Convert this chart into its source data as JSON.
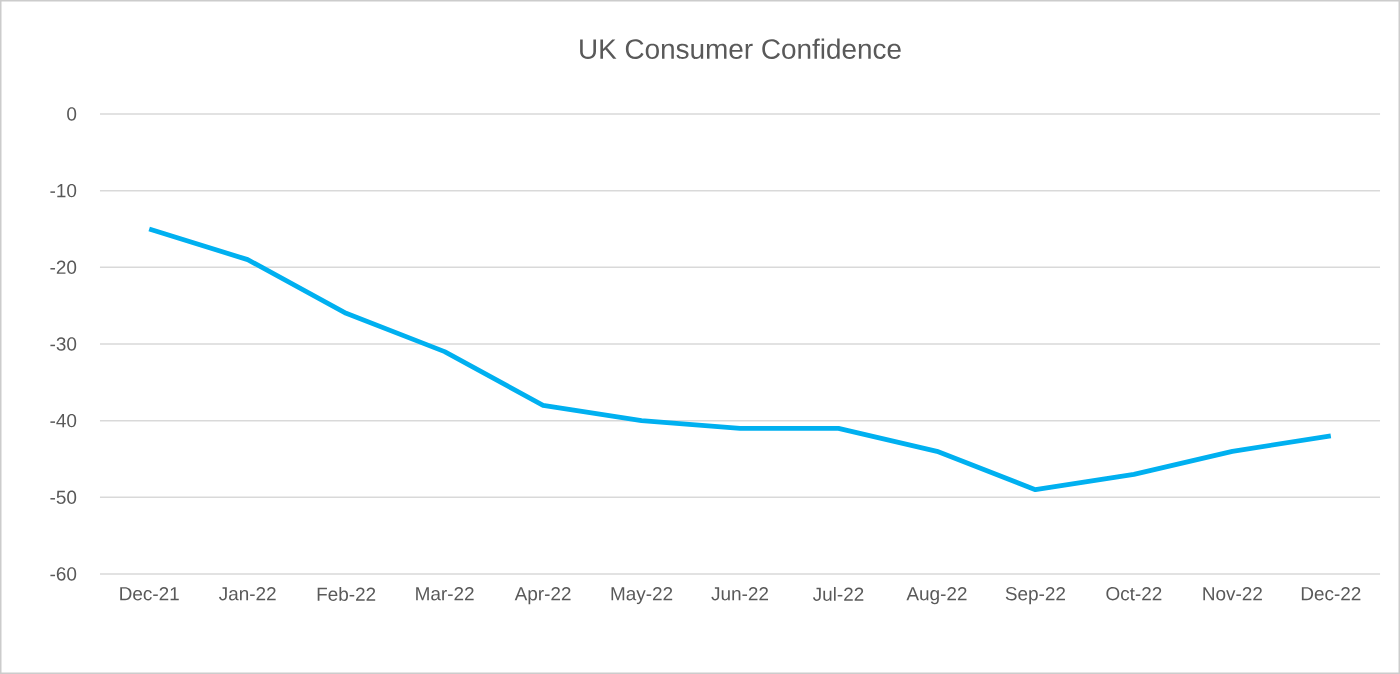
{
  "chart_data": {
    "type": "line",
    "title": "UK Consumer Confidence",
    "categories": [
      "Dec-21",
      "Jan-22",
      "Feb-22",
      "Mar-22",
      "Apr-22",
      "May-22",
      "Jun-22",
      "Jul-22",
      "Aug-22",
      "Sep-22",
      "Oct-22",
      "Nov-22",
      "Dec-22"
    ],
    "values": [
      -15,
      -19,
      -26,
      -31,
      -38,
      -40,
      -41,
      -41,
      -44,
      -49,
      -47,
      -44,
      -42
    ],
    "color": "#00b0f0",
    "ylim": [
      -60,
      0
    ],
    "yticks": [
      -60,
      -50,
      -40,
      -30,
      -20,
      -10,
      0
    ],
    "grid": "y",
    "marker": "none",
    "line_style": "solid"
  }
}
